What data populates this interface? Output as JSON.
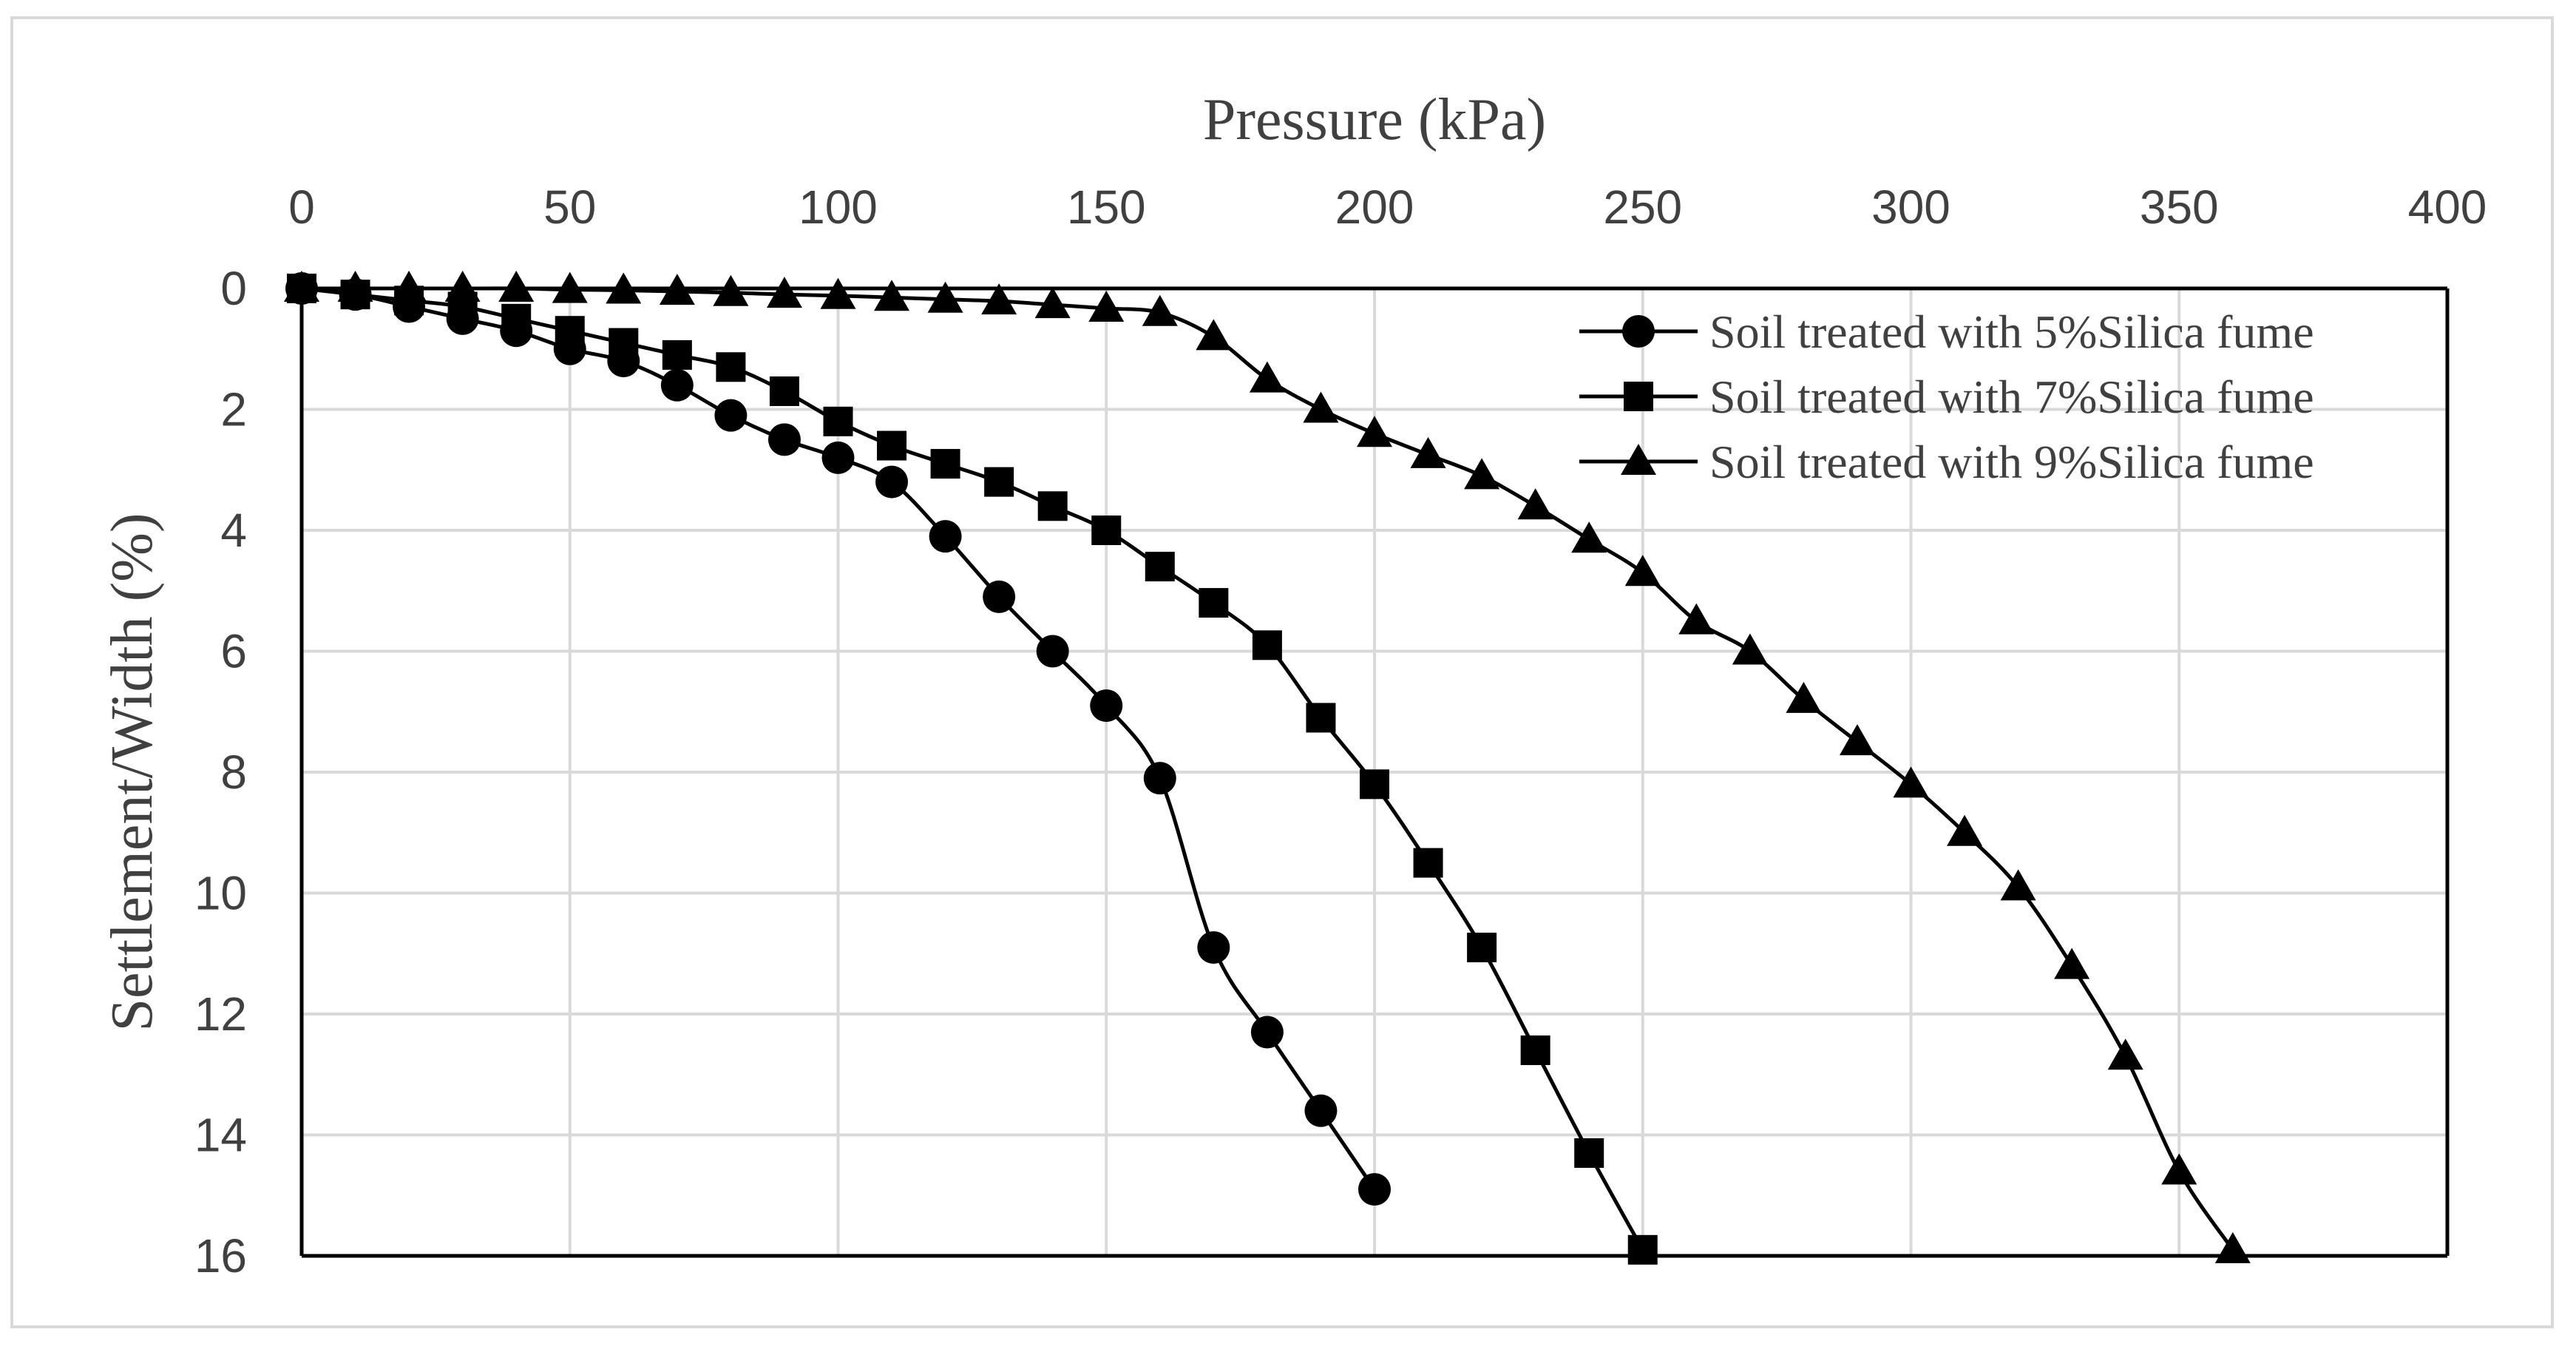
{
  "chart_data": {
    "type": "line",
    "xlabel": "Pressure (kPa)",
    "ylabel": "Settlement/Width (%)",
    "x_axis_position": "top",
    "y_axis_inverted": true,
    "xlim": [
      0,
      400
    ],
    "ylim": [
      0,
      16
    ],
    "x_ticks": [
      0,
      50,
      100,
      150,
      200,
      250,
      300,
      350,
      400
    ],
    "y_ticks": [
      0,
      2,
      4,
      6,
      8,
      10,
      12,
      14,
      16
    ],
    "grid": true,
    "legend_position": "top-right",
    "series": [
      {
        "name": "Soil treated with 5%Silica fume",
        "marker": "circle",
        "x": [
          0,
          10,
          20,
          30,
          40,
          50,
          60,
          70,
          80,
          90,
          100,
          110,
          120,
          130,
          140,
          150,
          160,
          170,
          180,
          190,
          200
        ],
        "y": [
          0,
          0.1,
          0.3,
          0.5,
          0.7,
          1.0,
          1.2,
          1.6,
          2.1,
          2.5,
          2.8,
          3.2,
          4.1,
          5.1,
          6.0,
          6.9,
          8.1,
          10.9,
          12.3,
          13.6,
          14.9
        ]
      },
      {
        "name": "Soil treated with 7%Silica fume",
        "marker": "square",
        "x": [
          0,
          10,
          20,
          30,
          40,
          50,
          60,
          70,
          80,
          90,
          100,
          110,
          120,
          130,
          140,
          150,
          160,
          170,
          180,
          190,
          200,
          210,
          220,
          230,
          240,
          250
        ],
        "y": [
          0,
          0.1,
          0.2,
          0.3,
          0.5,
          0.7,
          0.9,
          1.1,
          1.3,
          1.7,
          2.2,
          2.6,
          2.9,
          3.2,
          3.6,
          4.0,
          4.6,
          5.2,
          5.9,
          7.1,
          8.2,
          9.5,
          10.9,
          12.6,
          14.3,
          15.9
        ]
      },
      {
        "name": "Soil treated with 9%Silica fume",
        "marker": "triangle",
        "x": [
          0,
          10,
          20,
          30,
          40,
          50,
          60,
          70,
          80,
          90,
          100,
          110,
          120,
          130,
          140,
          150,
          160,
          170,
          180,
          190,
          200,
          210,
          220,
          230,
          240,
          250,
          260,
          270,
          280,
          290,
          300,
          310,
          320,
          330,
          340,
          350,
          360
        ],
        "y": [
          0,
          0,
          0,
          0,
          0,
          0.02,
          0.03,
          0.05,
          0.07,
          0.1,
          0.12,
          0.15,
          0.18,
          0.21,
          0.27,
          0.33,
          0.4,
          0.8,
          1.5,
          2.0,
          2.4,
          2.75,
          3.1,
          3.6,
          4.15,
          4.7,
          5.5,
          6.0,
          6.8,
          7.5,
          8.2,
          9.0,
          9.9,
          11.2,
          12.7,
          14.6,
          15.9
        ]
      }
    ]
  }
}
